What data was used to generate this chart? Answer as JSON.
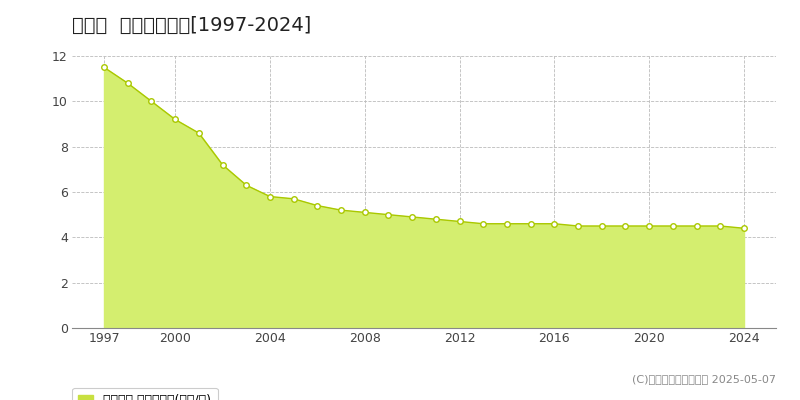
{
  "title": "東庄町  基準地価推移[1997-2024]",
  "years": [
    1997,
    1998,
    1999,
    2000,
    2001,
    2002,
    2003,
    2004,
    2005,
    2006,
    2007,
    2008,
    2009,
    2010,
    2011,
    2012,
    2013,
    2014,
    2015,
    2016,
    2017,
    2018,
    2019,
    2020,
    2021,
    2022,
    2023,
    2024
  ],
  "values": [
    11.5,
    10.8,
    10.0,
    9.2,
    8.6,
    7.2,
    6.3,
    5.8,
    5.7,
    5.4,
    5.2,
    5.1,
    5.0,
    4.9,
    4.8,
    4.7,
    4.6,
    4.6,
    4.6,
    4.6,
    4.5,
    4.5,
    4.5,
    4.5,
    4.5,
    4.5,
    4.5,
    4.4
  ],
  "fill_color": "#d4ee6f",
  "line_color": "#aac800",
  "marker_facecolor": "#ffffff",
  "marker_edgecolor": "#aac800",
  "ylim": [
    0,
    12
  ],
  "yticks": [
    0,
    2,
    4,
    6,
    8,
    10,
    12
  ],
  "xticks": [
    1997,
    2000,
    2004,
    2008,
    2012,
    2016,
    2020,
    2024
  ],
  "grid_color": "#bbbbbb",
  "bg_color": "#ffffff",
  "plot_bg_color": "#ffffff",
  "legend_label": "基準地価 平均坪単価(万円/坪)",
  "legend_square_color": "#c8e040",
  "copyright_text": "(C)土地価格ドットコム 2025-05-07",
  "title_fontsize": 14,
  "tick_fontsize": 9,
  "legend_fontsize": 9,
  "copyright_fontsize": 8
}
